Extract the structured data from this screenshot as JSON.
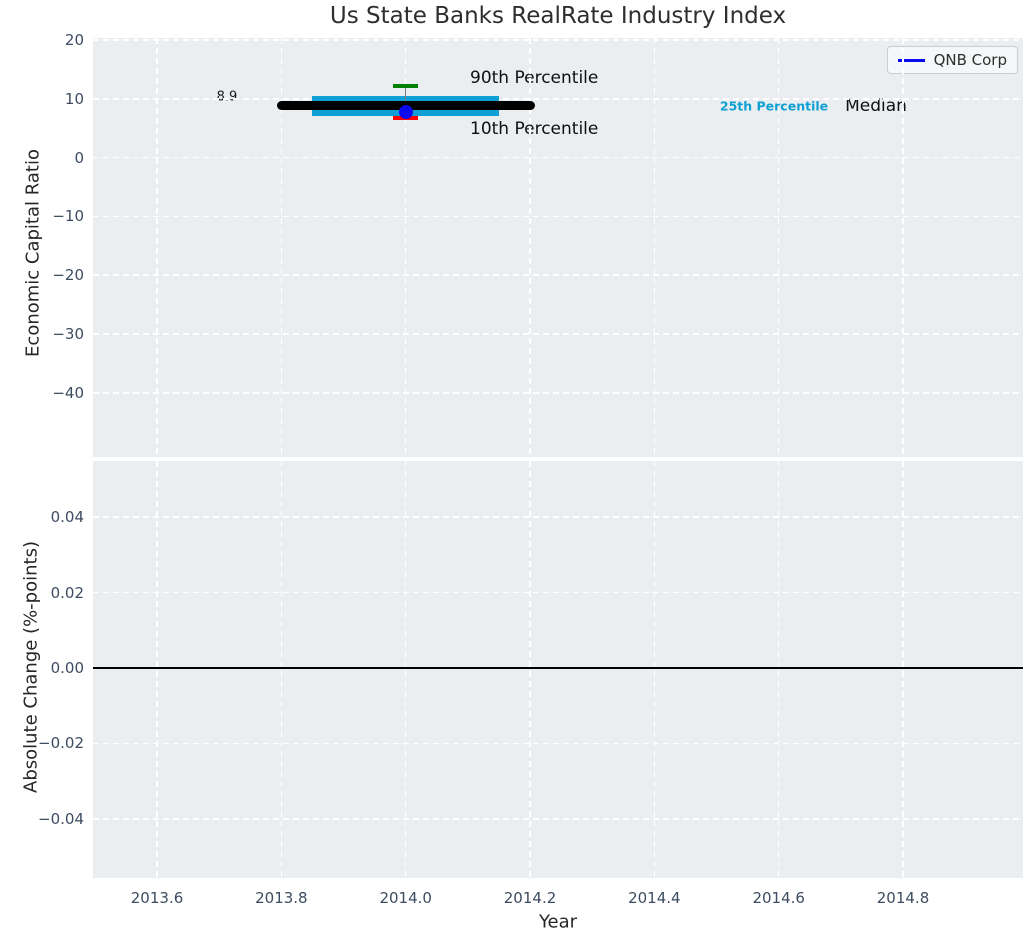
{
  "title": "Us State Banks RealRate Industry Index",
  "legend": {
    "label": "QNB Corp"
  },
  "top_axes": {
    "ylabel": "Economic Capital Ratio",
    "yticks": {
      "values": [
        20,
        10,
        0,
        -10,
        -20,
        -30,
        -40
      ],
      "labels": [
        "20",
        "10",
        "0",
        "−10",
        "−20",
        "−30",
        "−40"
      ]
    },
    "annotations": {
      "median_value_label": "8.9",
      "p90_label": "90th Percentile",
      "p10_label": "10th Percentile",
      "p25_label": "25th Percentile",
      "median_label": "Median"
    }
  },
  "bottom_axes": {
    "ylabel": "Absolute Change (%-points)",
    "xlabel": "Year",
    "yticks": {
      "values": [
        0.04,
        0.02,
        0,
        -0.02,
        -0.04
      ],
      "labels": [
        "0.04",
        "0.02",
        "0.00",
        "−0.02",
        "−0.04"
      ]
    },
    "xticks": {
      "values": [
        2013.6,
        2013.8,
        2014.0,
        2014.2,
        2014.4,
        2014.6,
        2014.8
      ],
      "labels": [
        "2013.6",
        "2013.8",
        "2014.0",
        "2014.2",
        "2014.4",
        "2014.6",
        "2014.8"
      ]
    }
  },
  "chart_data": [
    {
      "type": "box",
      "title": "Us State Banks RealRate Industry Index",
      "ylabel": "Economic Capital Ratio",
      "xlim": [
        2013.497,
        2014.993
      ],
      "ylim": [
        -50.9,
        20.33
      ],
      "yticks": [
        20,
        10,
        0,
        -10,
        -20,
        -30,
        -40
      ],
      "grid": true,
      "legend_position": "upper right",
      "x": 2014.0,
      "boxplot": {
        "median": 8.9,
        "median_span_years": [
          2013.8,
          2014.2
        ],
        "q1": 7.0,
        "q3": 10.5,
        "box_span_years": [
          2013.85,
          2014.15
        ],
        "p10": 6.7,
        "p90": 12.2,
        "cap_halfwidth_years": 0.02
      },
      "points": [
        {
          "name": "QNB Corp",
          "x": 2014.0,
          "y": 7.8
        }
      ],
      "annotations": [
        {
          "text": "8.9",
          "x": 2013.71,
          "y": 10.1
        },
        {
          "text": "90th Percentile",
          "x": 2014.2,
          "y": 13.5
        },
        {
          "text": "10th Percentile",
          "x": 2014.2,
          "y": 4.8
        },
        {
          "text": "25th Percentile",
          "x": 2014.59,
          "y": 8.9
        },
        {
          "text": "Median",
          "x": 2014.76,
          "y": 8.9
        }
      ]
    },
    {
      "type": "line",
      "ylabel": "Absolute Change (%-points)",
      "xlabel": "Year",
      "xlim": [
        2013.497,
        2014.993
      ],
      "ylim": [
        -0.0557,
        0.0549
      ],
      "yticks": [
        0.04,
        0.02,
        0,
        -0.02,
        -0.04
      ],
      "xticks": [
        2013.6,
        2013.8,
        2014.0,
        2014.2,
        2014.4,
        2014.6,
        2014.8
      ],
      "grid": true,
      "zero_line": 0.0,
      "series": []
    }
  ],
  "colors": {
    "plot_bg": "#eaeef0",
    "grid": "#ffffff",
    "tick_label": "#3d4c61",
    "text": "#262626",
    "median_black": "#000000",
    "box_cyan": "#0ea0d4",
    "p90_green": "#008000",
    "p10_red": "#ff0000",
    "qnb_blue": "#0a0af0",
    "whisker_gray": "#7d7d7d",
    "zero_line": "#000000"
  }
}
